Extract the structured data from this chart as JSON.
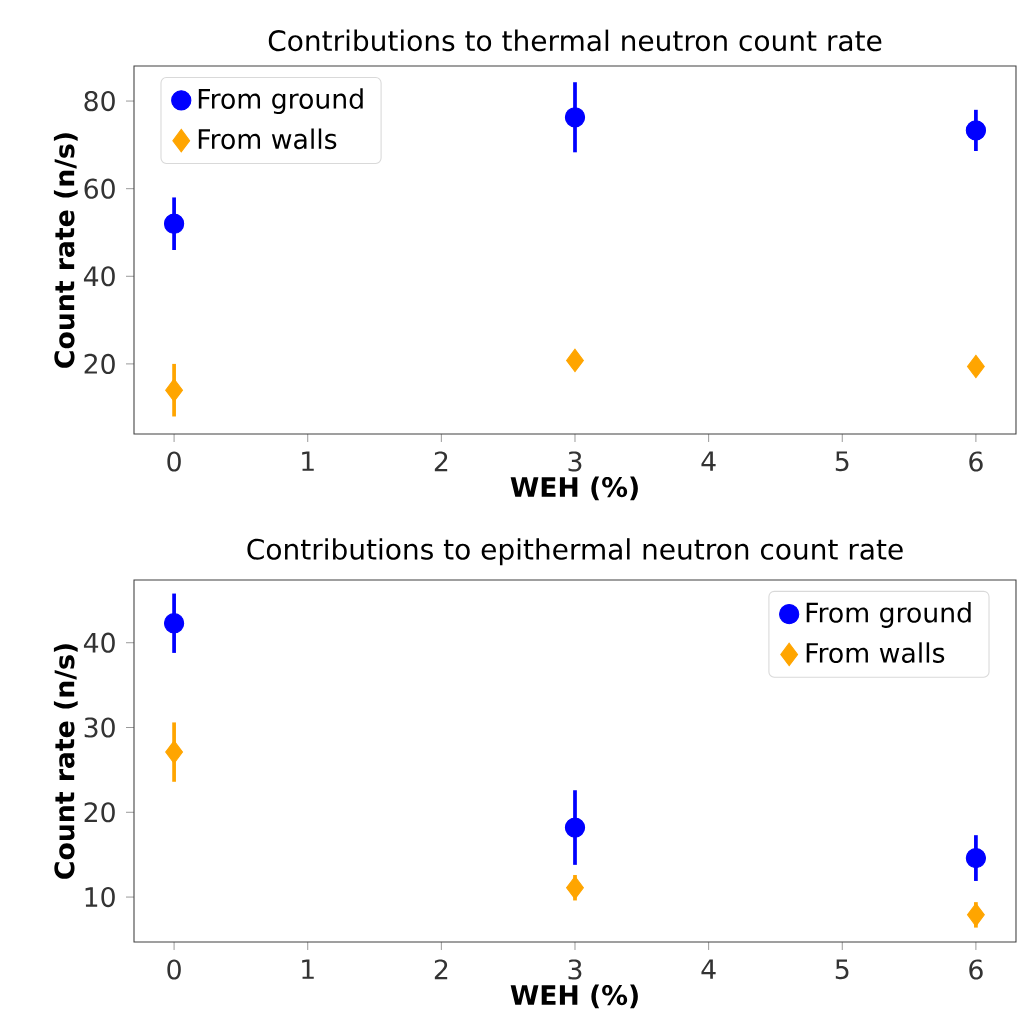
{
  "chart_data": [
    {
      "type": "scatter",
      "title": "Contributions to thermal neutron count rate",
      "xlabel": "WEH (%)",
      "ylabel": "Count rate (n/s)",
      "x": [
        0,
        3,
        6
      ],
      "xlim": [
        -0.3,
        6.3
      ],
      "ylim": [
        4,
        88
      ],
      "xticks": [
        0,
        1,
        2,
        3,
        4,
        5,
        6
      ],
      "yticks": [
        20,
        40,
        60,
        80
      ],
      "legend": "top left",
      "series": [
        {
          "name": "From ground",
          "color": "#0000ff",
          "marker": "circle",
          "values": [
            52,
            76.3,
            73.3
          ],
          "errors": [
            6,
            8,
            4.7
          ]
        },
        {
          "name": "From walls",
          "color": "#ffa500",
          "marker": "diamond",
          "values": [
            14,
            20.8,
            19.4
          ],
          "errors": [
            6,
            2,
            2
          ]
        }
      ]
    },
    {
      "type": "scatter",
      "title": "Contributions to epithermal neutron count rate",
      "xlabel": "WEH (%)",
      "ylabel": "Count rate (n/s)",
      "x": [
        0,
        3,
        6
      ],
      "xlim": [
        -0.3,
        6.3
      ],
      "ylim": [
        4.7,
        47.4
      ],
      "xticks": [
        0,
        1,
        2,
        3,
        4,
        5,
        6
      ],
      "yticks": [
        10,
        20,
        30,
        40
      ],
      "legend": "top right",
      "series": [
        {
          "name": "From ground",
          "color": "#0000ff",
          "marker": "circle",
          "values": [
            42.3,
            18.2,
            14.6
          ],
          "errors": [
            3.5,
            4.4,
            2.7
          ]
        },
        {
          "name": "From walls",
          "color": "#ffa500",
          "marker": "diamond",
          "values": [
            27.1,
            11.1,
            7.9
          ],
          "errors": [
            3.5,
            1.5,
            1.5
          ]
        }
      ]
    }
  ]
}
